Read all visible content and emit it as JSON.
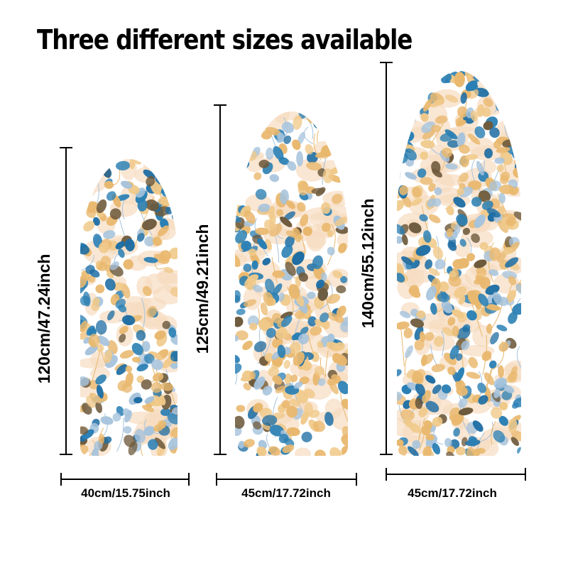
{
  "headline": "Three different sizes available",
  "boards": [
    {
      "length_label": "120cm/47.24inch",
      "width_label": "40cm/15.75inch"
    },
    {
      "length_label": "125cm/49.21inch",
      "width_label": "45cm/17.72inch"
    },
    {
      "length_label": "140cm/55.12inch",
      "width_label": "45cm/17.72inch"
    }
  ],
  "pattern": {
    "background": "#ffffff",
    "leaf_colors": [
      "#e9b86e",
      "#f0c989",
      "#2a7fb4",
      "#1f6ea4",
      "#a6c3dc",
      "#6e5a3c",
      "#f6dcc0"
    ]
  }
}
